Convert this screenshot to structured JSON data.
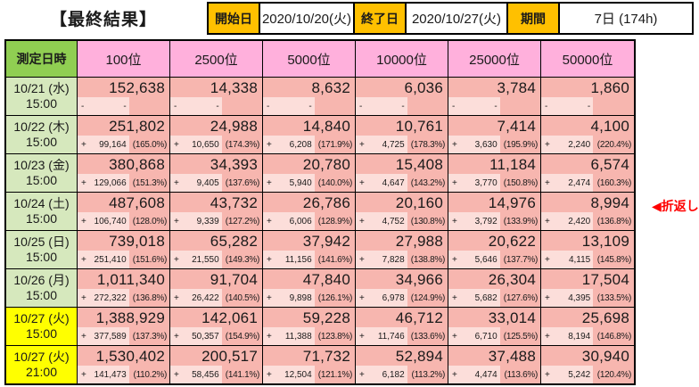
{
  "title": "【最終結果】",
  "info": {
    "start_label": "開始日",
    "start_value": "2020/10/20(火)",
    "end_label": "終了日",
    "end_value": "2020/10/27(火)",
    "period_label": "期間",
    "period_value": "7日 (174h)"
  },
  "table": {
    "datetime_header": "測定日時",
    "columns": [
      "100位",
      "2500位",
      "5000位",
      "10000位",
      "25000位",
      "50000位"
    ],
    "rows": [
      {
        "date": "10/21 (水)",
        "time": "15:00",
        "highlight": false,
        "cells": [
          {
            "value": "152,638",
            "sign": "-",
            "delta": "-",
            "pct": ""
          },
          {
            "value": "14,338",
            "sign": "-",
            "delta": "-",
            "pct": ""
          },
          {
            "value": "8,632",
            "sign": "-",
            "delta": "-",
            "pct": ""
          },
          {
            "value": "6,036",
            "sign": "-",
            "delta": "-",
            "pct": ""
          },
          {
            "value": "3,784",
            "sign": "-",
            "delta": "-",
            "pct": ""
          },
          {
            "value": "1,860",
            "sign": "-",
            "delta": "-",
            "pct": ""
          }
        ]
      },
      {
        "date": "10/22 (木)",
        "time": "15:00",
        "highlight": false,
        "cells": [
          {
            "value": "251,802",
            "sign": "+",
            "delta": "99,164",
            "pct": "(165.0%)"
          },
          {
            "value": "24,988",
            "sign": "+",
            "delta": "10,650",
            "pct": "(174.3%)"
          },
          {
            "value": "14,840",
            "sign": "+",
            "delta": "6,208",
            "pct": "(171.9%)"
          },
          {
            "value": "10,761",
            "sign": "+",
            "delta": "4,725",
            "pct": "(178.3%)"
          },
          {
            "value": "7,414",
            "sign": "+",
            "delta": "3,630",
            "pct": "(195.9%)"
          },
          {
            "value": "4,100",
            "sign": "+",
            "delta": "2,240",
            "pct": "(220.4%)"
          }
        ]
      },
      {
        "date": "10/23 (金)",
        "time": "15:00",
        "highlight": false,
        "cells": [
          {
            "value": "380,868",
            "sign": "+",
            "delta": "129,066",
            "pct": "(151.3%)"
          },
          {
            "value": "34,393",
            "sign": "+",
            "delta": "9,405",
            "pct": "(137.6%)"
          },
          {
            "value": "20,780",
            "sign": "+",
            "delta": "5,940",
            "pct": "(140.0%)"
          },
          {
            "value": "15,408",
            "sign": "+",
            "delta": "4,647",
            "pct": "(143.2%)"
          },
          {
            "value": "11,184",
            "sign": "+",
            "delta": "3,770",
            "pct": "(150.8%)"
          },
          {
            "value": "6,574",
            "sign": "+",
            "delta": "2,474",
            "pct": "(160.3%)"
          }
        ]
      },
      {
        "date": "10/24 (土)",
        "time": "15:00",
        "highlight": false,
        "cells": [
          {
            "value": "487,608",
            "sign": "+",
            "delta": "106,740",
            "pct": "(128.0%)"
          },
          {
            "value": "43,732",
            "sign": "+",
            "delta": "9,339",
            "pct": "(127.2%)"
          },
          {
            "value": "26,786",
            "sign": "+",
            "delta": "6,006",
            "pct": "(128.9%)"
          },
          {
            "value": "20,160",
            "sign": "+",
            "delta": "4,752",
            "pct": "(130.8%)"
          },
          {
            "value": "14,976",
            "sign": "+",
            "delta": "3,792",
            "pct": "(133.9%)"
          },
          {
            "value": "8,994",
            "sign": "+",
            "delta": "2,420",
            "pct": "(136.8%)"
          }
        ]
      },
      {
        "date": "10/25 (日)",
        "time": "15:00",
        "highlight": false,
        "cells": [
          {
            "value": "739,018",
            "sign": "+",
            "delta": "251,410",
            "pct": "(151.6%)"
          },
          {
            "value": "65,282",
            "sign": "+",
            "delta": "21,550",
            "pct": "(149.3%)"
          },
          {
            "value": "37,942",
            "sign": "+",
            "delta": "11,156",
            "pct": "(141.6%)"
          },
          {
            "value": "27,988",
            "sign": "+",
            "delta": "7,828",
            "pct": "(138.8%)"
          },
          {
            "value": "20,622",
            "sign": "+",
            "delta": "5,646",
            "pct": "(137.7%)"
          },
          {
            "value": "13,109",
            "sign": "+",
            "delta": "4,115",
            "pct": "(145.8%)"
          }
        ]
      },
      {
        "date": "10/26 (月)",
        "time": "15:00",
        "highlight": false,
        "cells": [
          {
            "value": "1,011,340",
            "sign": "+",
            "delta": "272,322",
            "pct": "(136.8%)"
          },
          {
            "value": "91,704",
            "sign": "+",
            "delta": "26,422",
            "pct": "(140.5%)"
          },
          {
            "value": "47,840",
            "sign": "+",
            "delta": "9,898",
            "pct": "(126.1%)"
          },
          {
            "value": "34,966",
            "sign": "+",
            "delta": "6,978",
            "pct": "(124.9%)"
          },
          {
            "value": "26,304",
            "sign": "+",
            "delta": "5,682",
            "pct": "(127.6%)"
          },
          {
            "value": "17,504",
            "sign": "+",
            "delta": "4,395",
            "pct": "(133.5%)"
          }
        ]
      },
      {
        "date": "10/27 (火)",
        "time": "15:00",
        "highlight": true,
        "cells": [
          {
            "value": "1,388,929",
            "sign": "+",
            "delta": "377,589",
            "pct": "(137.3%)"
          },
          {
            "value": "142,061",
            "sign": "+",
            "delta": "50,357",
            "pct": "(154.9%)"
          },
          {
            "value": "59,228",
            "sign": "+",
            "delta": "11,388",
            "pct": "(123.8%)"
          },
          {
            "value": "46,712",
            "sign": "+",
            "delta": "11,746",
            "pct": "(133.6%)"
          },
          {
            "value": "33,014",
            "sign": "+",
            "delta": "6,710",
            "pct": "(125.5%)"
          },
          {
            "value": "25,698",
            "sign": "+",
            "delta": "8,194",
            "pct": "(146.8%)"
          }
        ]
      },
      {
        "date": "10/27 (火)",
        "time": "21:00",
        "highlight": true,
        "cells": [
          {
            "value": "1,530,402",
            "sign": "+",
            "delta": "141,473",
            "pct": "(110.2%)"
          },
          {
            "value": "200,517",
            "sign": "+",
            "delta": "58,456",
            "pct": "(141.1%)"
          },
          {
            "value": "71,732",
            "sign": "+",
            "delta": "12,504",
            "pct": "(121.1%)"
          },
          {
            "value": "52,894",
            "sign": "+",
            "delta": "6,182",
            "pct": "(113.2%)"
          },
          {
            "value": "37,488",
            "sign": "+",
            "delta": "4,474",
            "pct": "(113.6%)"
          },
          {
            "value": "30,940",
            "sign": "+",
            "delta": "5,242",
            "pct": "(120.4%)"
          }
        ]
      }
    ]
  },
  "turnaround_marker": "◀折返し",
  "colors": {
    "header_pink": "#ffb0dc",
    "header_green": "#90ce52",
    "date_pale_green": "#d6e8bd",
    "value_salmon": "#f7b6af",
    "delta_light_pink": "#fcdeda",
    "label_orange": "#ffc000",
    "highlight_yellow": "#ffff00",
    "marker_red": "#ff0000",
    "border_black": "#000000"
  }
}
